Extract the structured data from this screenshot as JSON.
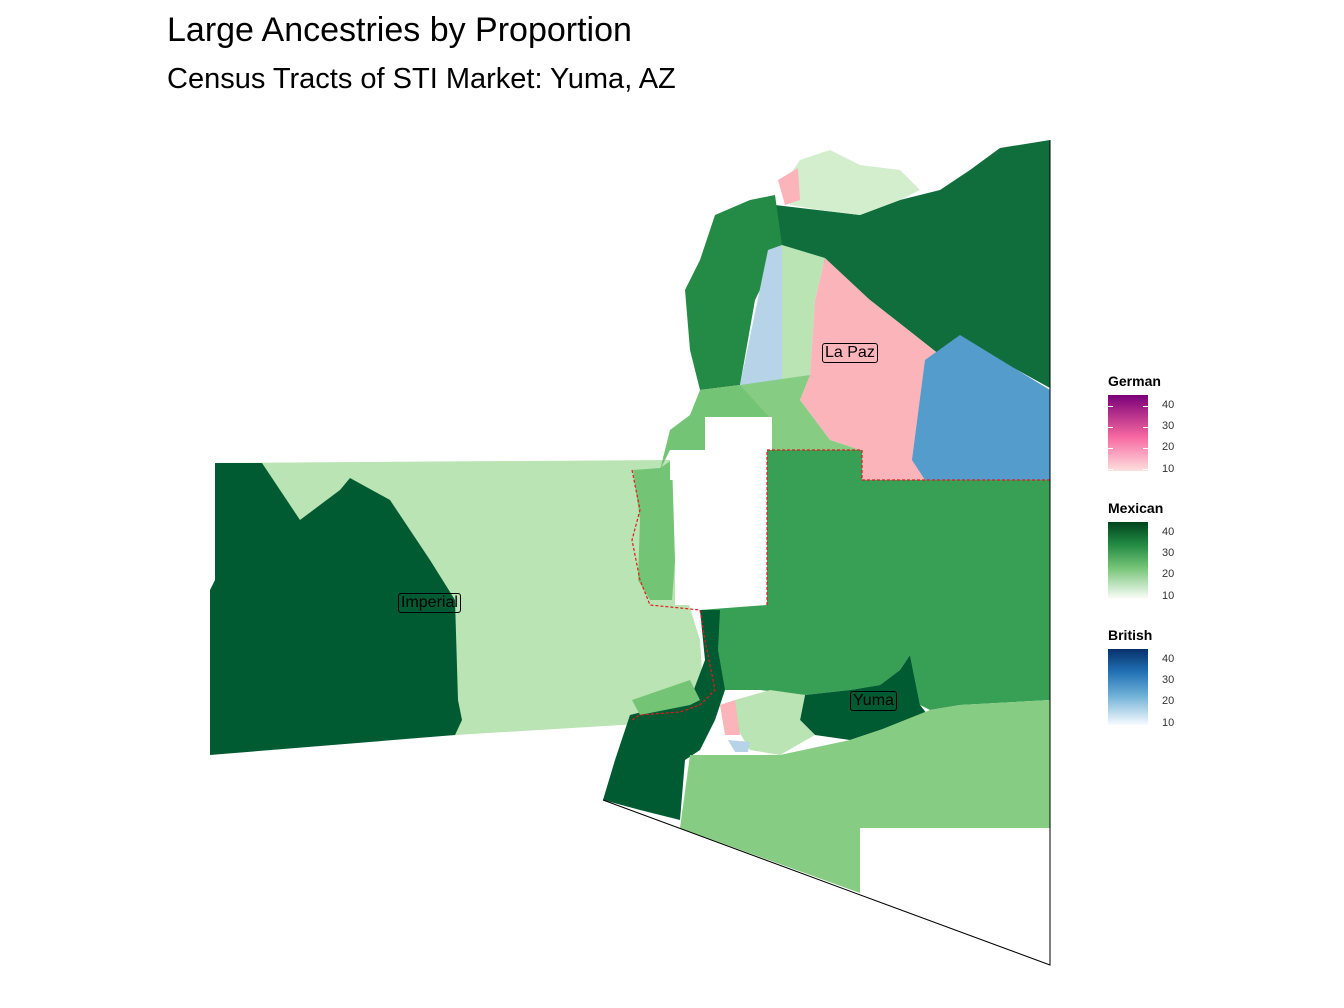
{
  "title": "Large Ancestries by Proportion",
  "subtitle": "Census Tracts of STI Market: Yuma, AZ",
  "labels": {
    "imperial": "Imperial",
    "la_paz": "La Paz",
    "yuma": "Yuma"
  },
  "legends": [
    {
      "title": "German",
      "ticks": [
        "40",
        "30",
        "20",
        "10"
      ],
      "color_low": "#fde0dd",
      "color_mid": "#f768a1",
      "color_high": "#7a0177"
    },
    {
      "title": "Mexican",
      "ticks": [
        "40",
        "30",
        "20",
        "10"
      ],
      "color_low": "#f7fcf5",
      "color_mid": "#74c476",
      "color_high": "#00441b"
    },
    {
      "title": "British",
      "ticks": [
        "40",
        "30",
        "20",
        "10"
      ],
      "color_low": "#f7fbff",
      "color_mid": "#6baed6",
      "color_high": "#08306b"
    }
  ],
  "colors": {
    "mexican_darkest": "#005a32",
    "mexican_dark": "#0f6e3b",
    "mexican_mid": "#238b45",
    "mexican_medium": "#37a055",
    "mexican_light": "#74c476",
    "mexican_lighter": "#86cc83",
    "mexican_pale": "#bae4b3",
    "mexican_palest": "#d3eecd",
    "german_light": "#fbb4b9",
    "british_light": "#b6d3e8",
    "british_mid": "#539ccb",
    "boundary_red": "#e31a1c"
  }
}
